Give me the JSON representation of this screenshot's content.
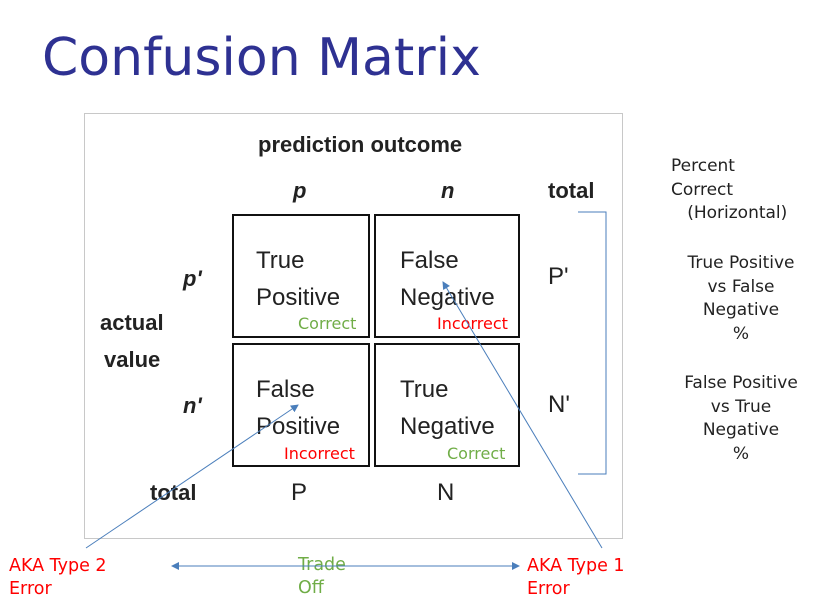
{
  "title": "Confusion Matrix",
  "matrix": {
    "heading": "prediction outcome",
    "col_p": "p",
    "col_n": "n",
    "col_total": "total",
    "row_label_1": "actual",
    "row_label_2": "value",
    "row_p": "p'",
    "row_n": "n'",
    "row_total": "total",
    "tp": "True\nPositive",
    "fn": "False\nNegative",
    "fp": "False\nPositive",
    "tn": "True\nNegative",
    "total_p_row": "P'",
    "total_n_row": "N'",
    "total_p_col": "P",
    "total_n_col": "N"
  },
  "tags": {
    "tp": "Correct",
    "fn": "Incorrect",
    "fp": "Incorrect",
    "tn": "Correct"
  },
  "side_notes": {
    "percent": "Percent\nCorrect\n   (Horizontal)",
    "tp_fn": "True Positive\nvs False\nNegative\n%",
    "fp_tn": "False Positive\nvs True\nNegative\n%"
  },
  "bottom": {
    "type2": "AKA Type 2\nError",
    "tradeoff": "Trade\nOff",
    "type1": "AKA Type 1\nError"
  },
  "colors": {
    "title": "#2e3192",
    "correct": "#70ad47",
    "incorrect": "#ff0000",
    "arrow": "#4a7ebb"
  }
}
